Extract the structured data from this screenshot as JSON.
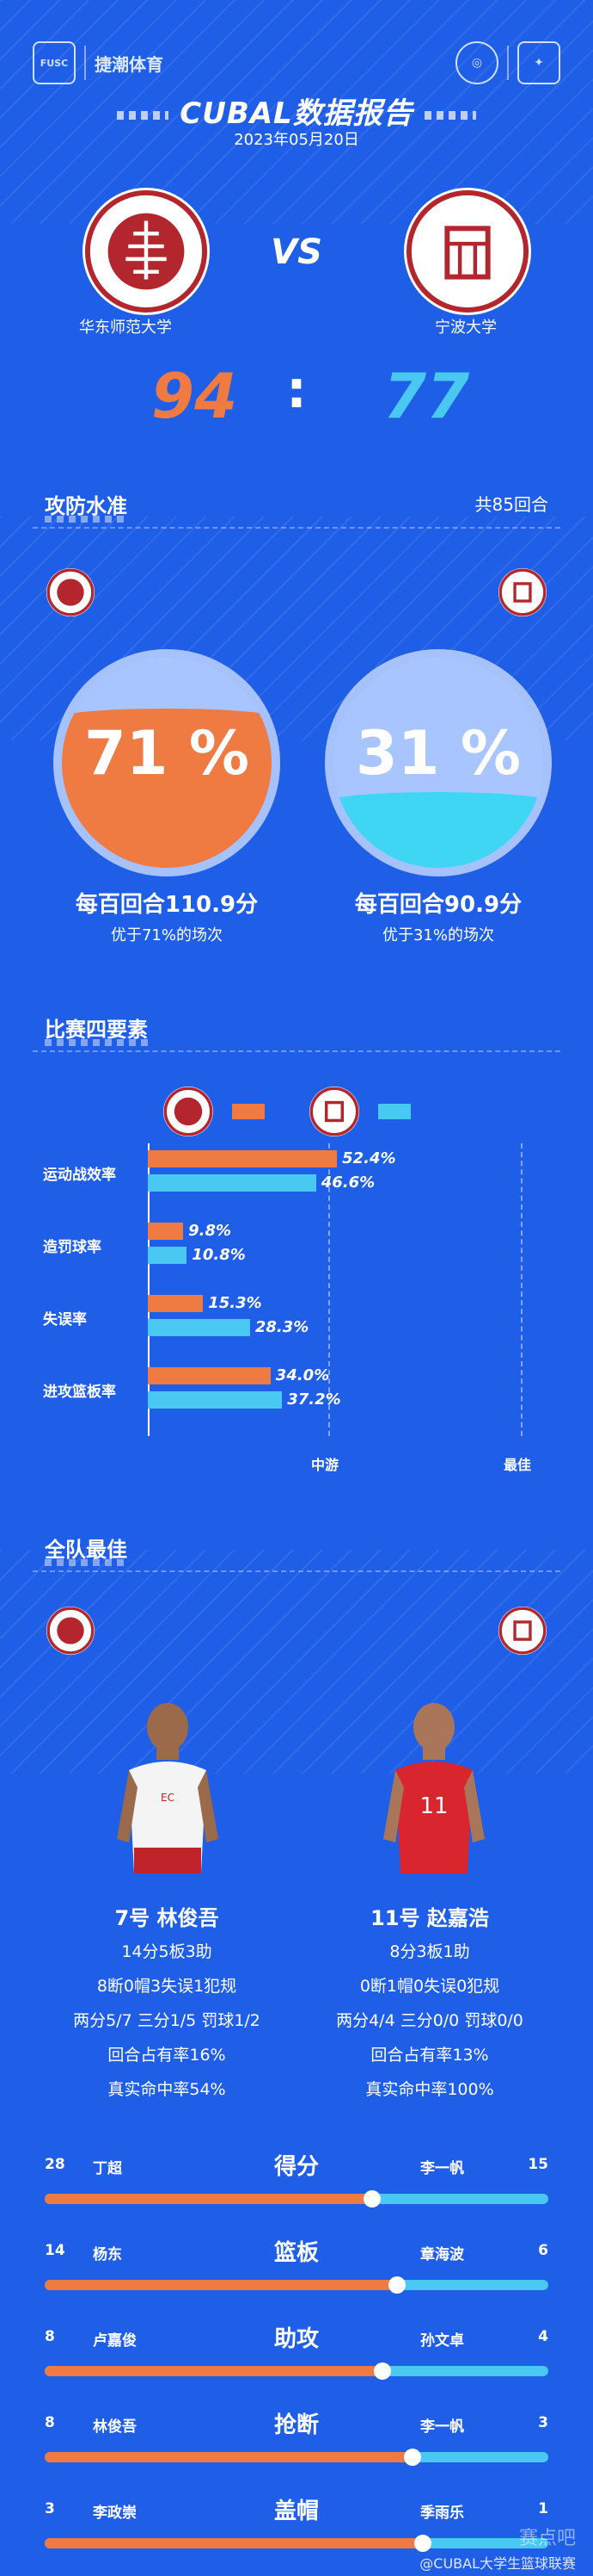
{
  "header": {
    "brand_left": "FUSC",
    "brand_right": "捷潮体育",
    "title": "CUBAL数据报告",
    "date": "2023年05月20日"
  },
  "match": {
    "vs_label": "VS",
    "home": {
      "name": "华东师范大学",
      "score": "94",
      "color": "#ef7a42"
    },
    "away": {
      "name": "宁波大学",
      "score": "77",
      "color": "#49c9f2"
    },
    "score_sep": ":"
  },
  "offense": {
    "heading": "攻防水准",
    "rounds_label": "共85回合",
    "home": {
      "pct_display": "71 %",
      "pct": 0.71,
      "rating": "每百回合110.9分",
      "better": "优于71%的场次"
    },
    "away": {
      "pct_display": "31 %",
      "pct": 0.31,
      "rating": "每百回合90.9分",
      "better": "优于31%的场次"
    }
  },
  "four_factors": {
    "heading": "比赛四要素",
    "tick_mid": "中游",
    "tick_best": "最佳",
    "rows": [
      {
        "label": "运动战效率",
        "home": "52.4%",
        "away": "46.6%",
        "home_v": 52.4,
        "away_v": 46.6
      },
      {
        "label": "造罚球率",
        "home": "9.8%",
        "away": "10.8%",
        "home_v": 9.8,
        "away_v": 10.8
      },
      {
        "label": "失误率",
        "home": "15.3%",
        "away": "28.3%",
        "home_v": 15.3,
        "away_v": 28.3
      },
      {
        "label": "进攻篮板率",
        "home": "34.0%",
        "away": "37.2%",
        "home_v": 34.0,
        "away_v": 37.2
      }
    ]
  },
  "best": {
    "heading": "全队最佳",
    "home_player": {
      "name": "7号  林俊吾",
      "stats1": "14分5板3助",
      "stats2": "8断0帽3失误1犯规",
      "stats3": "两分5/7 三分1/5 罚球1/2",
      "usage": "回合占有率16%",
      "ts": "真实命中率54%"
    },
    "away_player": {
      "name": "11号  赵嘉浩",
      "stats1": "8分3板1助",
      "stats2": "0断1帽0失误0犯规",
      "stats3": "两分4/4 三分0/0 罚球0/0",
      "usage": "回合占有率13%",
      "ts": "真实命中率100%"
    }
  },
  "leaders": [
    {
      "cat": "得分",
      "home_val": "28",
      "home_name": "丁超",
      "away_name": "李一帆",
      "away_val": "15",
      "ratio": 0.65
    },
    {
      "cat": "篮板",
      "home_val": "14",
      "home_name": "杨东",
      "away_name": "章海波",
      "away_val": "6",
      "ratio": 0.7
    },
    {
      "cat": "助攻",
      "home_val": "8",
      "home_name": "卢嘉俊",
      "away_name": "孙文卓",
      "away_val": "4",
      "ratio": 0.67
    },
    {
      "cat": "抢断",
      "home_val": "8",
      "home_name": "林俊吾",
      "away_name": "李一帆",
      "away_val": "3",
      "ratio": 0.73
    },
    {
      "cat": "盖帽",
      "home_val": "3",
      "home_name": "李政崇",
      "away_name": "季雨乐",
      "away_val": "1",
      "ratio": 0.75
    }
  ],
  "footer": {
    "weibo": "@CUBAL大学生篮球联赛",
    "stamp": "赛点吧"
  }
}
